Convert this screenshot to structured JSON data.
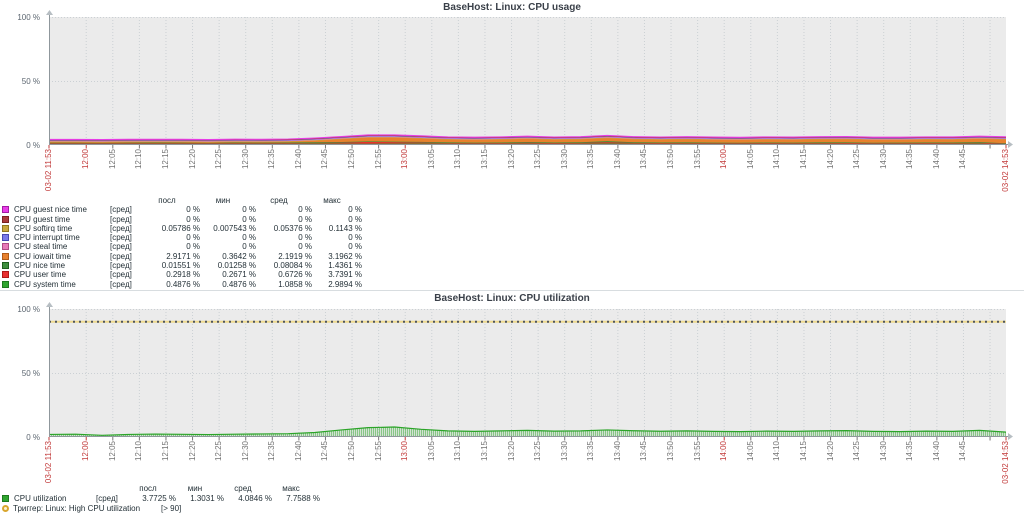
{
  "colors": {
    "plot_bg": "#ebebeb",
    "grid": "#cbd0d4",
    "axis": "#8f979c",
    "tick": "#777777",
    "tick_red": "#c23b3b",
    "trigger_line_base": "#eed98e",
    "trigger_line_dash": "#50555b"
  },
  "time_axis": {
    "range_minutes": 180,
    "labels": [
      {
        "l": "03-02 11:53",
        "m": 0,
        "r": true
      },
      {
        "l": "12:00",
        "m": 7,
        "r": true
      },
      {
        "l": "12:05",
        "m": 12
      },
      {
        "l": "12:10",
        "m": 17
      },
      {
        "l": "12:15",
        "m": 22
      },
      {
        "l": "12:20",
        "m": 27
      },
      {
        "l": "12:25",
        "m": 32
      },
      {
        "l": "12:30",
        "m": 37
      },
      {
        "l": "12:35",
        "m": 42
      },
      {
        "l": "12:40",
        "m": 47
      },
      {
        "l": "12:45",
        "m": 52
      },
      {
        "l": "12:50",
        "m": 57
      },
      {
        "l": "12:55",
        "m": 62
      },
      {
        "l": "13:00",
        "m": 67,
        "r": true
      },
      {
        "l": "13:05",
        "m": 72
      },
      {
        "l": "13:10",
        "m": 77
      },
      {
        "l": "13:15",
        "m": 82
      },
      {
        "l": "13:20",
        "m": 87
      },
      {
        "l": "13:25",
        "m": 92
      },
      {
        "l": "13:30",
        "m": 97
      },
      {
        "l": "13:35",
        "m": 102
      },
      {
        "l": "13:40",
        "m": 107
      },
      {
        "l": "13:45",
        "m": 112
      },
      {
        "l": "13:50",
        "m": 117
      },
      {
        "l": "13:55",
        "m": 122
      },
      {
        "l": "14:00",
        "m": 127,
        "r": true
      },
      {
        "l": "14:05",
        "m": 132
      },
      {
        "l": "14:10",
        "m": 137
      },
      {
        "l": "14:15",
        "m": 142
      },
      {
        "l": "14:20",
        "m": 147
      },
      {
        "l": "14:25",
        "m": 152
      },
      {
        "l": "14:30",
        "m": 157
      },
      {
        "l": "14:35",
        "m": 162
      },
      {
        "l": "14:40",
        "m": 167
      },
      {
        "l": "14:45",
        "m": 172
      },
      {
        "l": "03-02 14:53",
        "m": 180,
        "r": true
      }
    ]
  },
  "graph1": {
    "title": "BaseHost: Linux: CPU usage",
    "y_ticks": [
      {
        "label": "100 %",
        "value": 100
      },
      {
        "label": "50 %",
        "value": 50
      },
      {
        "label": "0 %",
        "value": 0
      }
    ],
    "legend_headers": [
      "посл",
      "мин",
      "сред",
      "макс"
    ],
    "legend_rows": [
      {
        "name": "CPU guest nice time",
        "calc": "[сред]",
        "color": "#e73de7",
        "border": "#a31ba3",
        "last": "0 %",
        "min": "0 %",
        "avg": "0 %",
        "max": "0 %"
      },
      {
        "name": "CPU guest time",
        "calc": "[сред]",
        "color": "#a93a3a",
        "border": "#7a2020",
        "last": "0 %",
        "min": "0 %",
        "avg": "0 %",
        "max": "0 %"
      },
      {
        "name": "CPU softirq time",
        "calc": "[сред]",
        "color": "#c9a83e",
        "border": "#8f7820",
        "last": "0.05786 %",
        "min": "0.007543 %",
        "avg": "0.05376 %",
        "max": "0.1143 %"
      },
      {
        "name": "CPU interrupt time",
        "calc": "[сред]",
        "color": "#7a7ae8",
        "border": "#4848b0",
        "last": "0 %",
        "min": "0 %",
        "avg": "0 %",
        "max": "0 %"
      },
      {
        "name": "CPU steal time",
        "calc": "[сред]",
        "color": "#e87ab8",
        "border": "#b04a85",
        "last": "0 %",
        "min": "0 %",
        "avg": "0 %",
        "max": "0 %"
      },
      {
        "name": "CPU iowait time",
        "calc": "[сред]",
        "color": "#e8812d",
        "border": "#b05a18",
        "last": "2.9171 %",
        "min": "0.3642 %",
        "avg": "2.1919 %",
        "max": "3.1962 %"
      },
      {
        "name": "CPU nice time",
        "calc": "[сред]",
        "color": "#3e8f3e",
        "border": "#1e5e1e",
        "last": "0.01551 %",
        "min": "0.01258 %",
        "avg": "0.08084 %",
        "max": "1.4361 %"
      },
      {
        "name": "CPU user time",
        "calc": "[сред]",
        "color": "#e83030",
        "border": "#b01818",
        "last": "0.2918 %",
        "min": "0.2671 %",
        "avg": "0.6726 %",
        "max": "3.7391 %"
      },
      {
        "name": "CPU system time",
        "calc": "[сред]",
        "color": "#2fa52f",
        "border": "#1e781e",
        "last": "0.4876 %",
        "min": "0.4876 %",
        "avg": "1.0858 %",
        "max": "2.9894 %"
      }
    ],
    "chart_data": {
      "type": "area",
      "stacked": true,
      "ylim": [
        0,
        100
      ],
      "x_range": [
        "03-02 11:53",
        "03-02 14:53"
      ],
      "grid": true,
      "series": [
        {
          "name": "CPU system time",
          "color": "#2fa52f",
          "values": [
            1.0,
            1.0,
            0.9,
            1.0,
            1.1,
            1.0,
            0.9,
            1.1,
            1.0,
            1.1,
            1.2,
            1.1,
            1.0,
            1.1,
            1.2,
            1.1,
            1.0,
            1.0,
            1.1,
            1.0,
            1.1,
            1.2,
            1.1,
            1.0,
            1.1,
            1.0,
            0.9,
            1.0,
            1.0,
            1.1,
            1.0,
            0.9,
            1.0,
            1.0,
            1.1,
            1.2,
            0.5
          ]
        },
        {
          "name": "CPU user time",
          "color": "#e83030",
          "values": [
            0.3,
            0.3,
            0.3,
            0.3,
            0.4,
            0.3,
            0.3,
            0.4,
            0.3,
            0.4,
            0.5,
            0.8,
            1.4,
            1.1,
            0.8,
            0.5,
            0.4,
            0.5,
            0.8,
            0.5,
            0.6,
            0.9,
            0.6,
            0.5,
            0.5,
            0.4,
            0.4,
            0.5,
            0.4,
            0.5,
            0.6,
            0.4,
            0.4,
            0.5,
            0.4,
            0.6,
            0.3
          ]
        },
        {
          "name": "CPU nice time",
          "color": "#3e8f3e",
          "values": [
            0.02,
            0.02,
            0.02,
            0.02,
            0.02,
            0.02,
            0.02,
            0.02,
            0.02,
            0.02,
            0.02,
            0.02,
            0.05,
            0.05,
            0.02,
            0.02,
            0.02,
            0.02,
            0.05,
            0.02,
            0.3,
            0.9,
            0.3,
            0.02,
            0.02,
            0.02,
            0.02,
            0.02,
            0.02,
            0.02,
            0.02,
            0.02,
            0.02,
            0.02,
            0.02,
            0.02,
            0.02
          ]
        },
        {
          "name": "CPU iowait time",
          "color": "#e8812d",
          "values": [
            0.4,
            0.4,
            0.4,
            0.5,
            0.4,
            0.5,
            0.4,
            0.5,
            0.5,
            0.6,
            1.2,
            2.2,
            2.9,
            3.1,
            2.6,
            2.2,
            2.1,
            2.3,
            2.5,
            2.2,
            2.3,
            2.4,
            2.3,
            2.2,
            2.4,
            2.2,
            2.1,
            2.3,
            2.2,
            2.4,
            2.5,
            2.2,
            2.1,
            2.3,
            2.2,
            2.6,
            2.9
          ]
        },
        {
          "name": "CPU softirq time",
          "color": "#c9a83e",
          "values": [
            0.05,
            0.05,
            0.05,
            0.05,
            0.05,
            0.05,
            0.05,
            0.05,
            0.05,
            0.05,
            0.05,
            0.05,
            0.05,
            0.05,
            0.05,
            0.05,
            0.05,
            0.05,
            0.05,
            0.05,
            0.05,
            0.05,
            0.05,
            0.05,
            0.05,
            0.05,
            0.05,
            0.05,
            0.05,
            0.05,
            0.05,
            0.05,
            0.05,
            0.05,
            0.05,
            0.05,
            0.05
          ]
        },
        {
          "name": "CPU steal time",
          "color": "#e87ab8",
          "values": [
            0,
            0,
            0,
            0,
            0,
            0,
            0,
            0,
            0,
            0,
            0,
            0,
            0,
            0,
            0,
            0,
            0,
            0,
            0,
            0,
            0,
            0,
            0,
            0,
            0,
            0,
            0,
            0,
            0,
            0,
            0,
            0,
            0,
            0,
            0,
            0,
            0
          ]
        },
        {
          "name": "CPU interrupt time",
          "color": "#7a7ae8",
          "values": [
            0,
            0,
            0,
            0,
            0,
            0,
            0,
            0,
            0,
            0,
            0,
            0,
            0,
            0,
            0,
            0,
            0,
            0,
            0,
            0,
            0,
            0,
            0,
            0,
            0,
            0,
            0,
            0,
            0,
            0,
            0,
            0,
            0,
            0,
            0,
            0,
            0
          ]
        },
        {
          "name": "CPU guest time",
          "color": "#a93a3a",
          "values": [
            0,
            0,
            0,
            0,
            0,
            0,
            0,
            0,
            0,
            0,
            0,
            0,
            0,
            0,
            0,
            0,
            0,
            0,
            0,
            0,
            0,
            0,
            0,
            0,
            0,
            0,
            0,
            0,
            0,
            0,
            0,
            0,
            0,
            0,
            0,
            0,
            0
          ]
        },
        {
          "name": "CPU guest nice time",
          "color": "#e73de7",
          "values": [
            0,
            0,
            0,
            0,
            0,
            0,
            0,
            0,
            0,
            0,
            0,
            0,
            0,
            0,
            0,
            0,
            0,
            0,
            0,
            0,
            0,
            0,
            0,
            0,
            0,
            0,
            0,
            0,
            0,
            0,
            0,
            0,
            0,
            0,
            0,
            0,
            0
          ]
        }
      ]
    }
  },
  "graph2": {
    "title": "BaseHost: Linux: CPU utilization",
    "y_ticks": [
      {
        "label": "100 %",
        "value": 100
      },
      {
        "label": "50 %",
        "value": 50
      },
      {
        "label": "0 %",
        "value": 0
      }
    ],
    "legend_headers": [
      "посл",
      "мин",
      "сред",
      "макс"
    ],
    "legend_rows": [
      {
        "name": "CPU utilization",
        "calc": "[сред]",
        "color": "#2fa52f",
        "border": "#1e781e",
        "last": "3.7725 %",
        "min": "1.3031 %",
        "avg": "4.0846 %",
        "max": "7.7588 %"
      }
    ],
    "trigger": {
      "name": "Триггер: Linux: High CPU utilization",
      "range": "[> 90]",
      "value": 90
    },
    "chart_data": {
      "type": "area",
      "stacked": false,
      "ylim": [
        0,
        100
      ],
      "x_range": [
        "03-02 11:53",
        "03-02 14:53"
      ],
      "grid": true,
      "trigger_level": 90,
      "series": [
        {
          "name": "CPU utilization",
          "color": "#2ba428",
          "values": [
            2.0,
            2.2,
            1.3,
            2.0,
            2.3,
            2.1,
            1.9,
            2.2,
            2.4,
            2.6,
            3.5,
            5.5,
            7.3,
            7.8,
            6.0,
            4.8,
            4.4,
            4.8,
            5.2,
            4.6,
            4.8,
            5.5,
            4.9,
            4.5,
            4.8,
            4.4,
            4.2,
            4.6,
            4.4,
            4.8,
            5.0,
            4.4,
            4.2,
            4.6,
            4.4,
            5.2,
            3.8
          ]
        }
      ]
    }
  }
}
